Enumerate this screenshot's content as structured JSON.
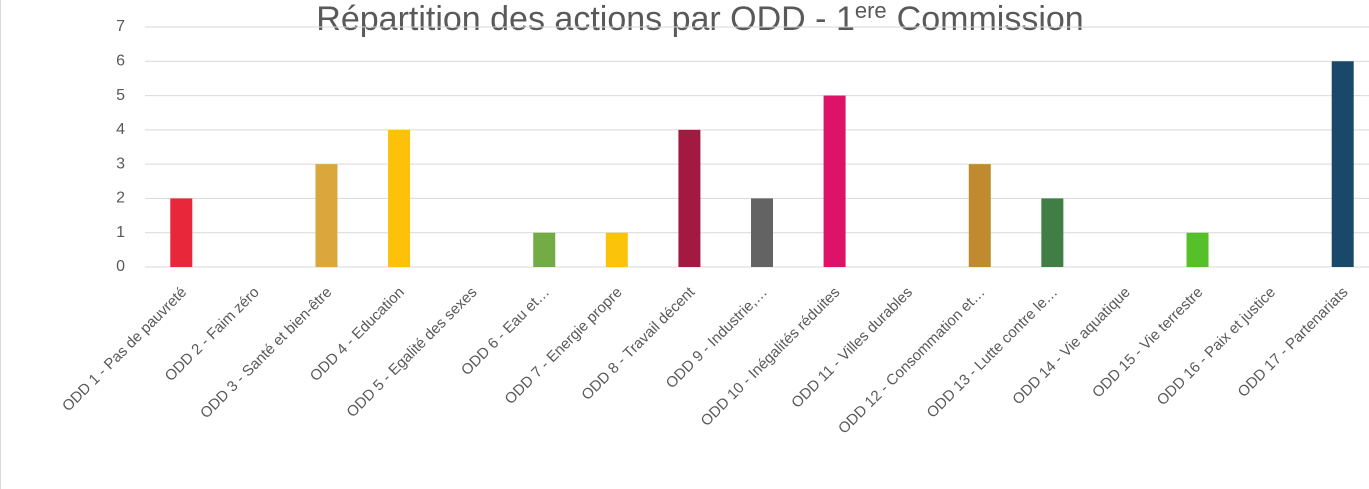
{
  "chart_data": {
    "type": "bar",
    "title": "Répartition des actions par ODD - 1",
    "title_superscript": "ere",
    "title_end": "Commission",
    "categories": [
      "ODD 1 - Pas de pauvreté",
      "ODD 2 - Faim zéro",
      "ODD 3 - Santé et bien-être",
      "ODD 4 - Education",
      "ODD 5 - Egalité des sexes",
      "ODD 6 - Eau et…",
      "ODD 7 - Energie propre",
      "ODD 8 - Travail décent",
      "ODD 9 - Industrie,…",
      "ODD 10 - Inégalités réduites",
      "ODD 11 - Villes durables",
      "ODD 12 - Consommation et…",
      "ODD 13 - Lutte contre le…",
      "ODD 14 - Vie aquatique",
      "ODD 15 - Vie terrestre",
      "ODD 16 - Paix et justice",
      "ODD 17 - Partenariats"
    ],
    "values": [
      2,
      0,
      3,
      4,
      0,
      1,
      1,
      4,
      2,
      5,
      0,
      3,
      2,
      0,
      1,
      0,
      6
    ],
    "colors": [
      "#e8283a",
      "#dda63a",
      "#dba63c",
      "#fdc10a",
      "#ff3a21",
      "#73ab44",
      "#fcc30b",
      "#a21942",
      "#636363",
      "#dd1367",
      "#fd9d24",
      "#bf8b2e",
      "#3f7e44",
      "#0a97d9",
      "#56c02b",
      "#00689d",
      "#19486a"
    ],
    "ylim": [
      0,
      7
    ],
    "yticks": [
      0,
      1,
      2,
      3,
      4,
      5,
      6,
      7
    ],
    "grid": true
  }
}
